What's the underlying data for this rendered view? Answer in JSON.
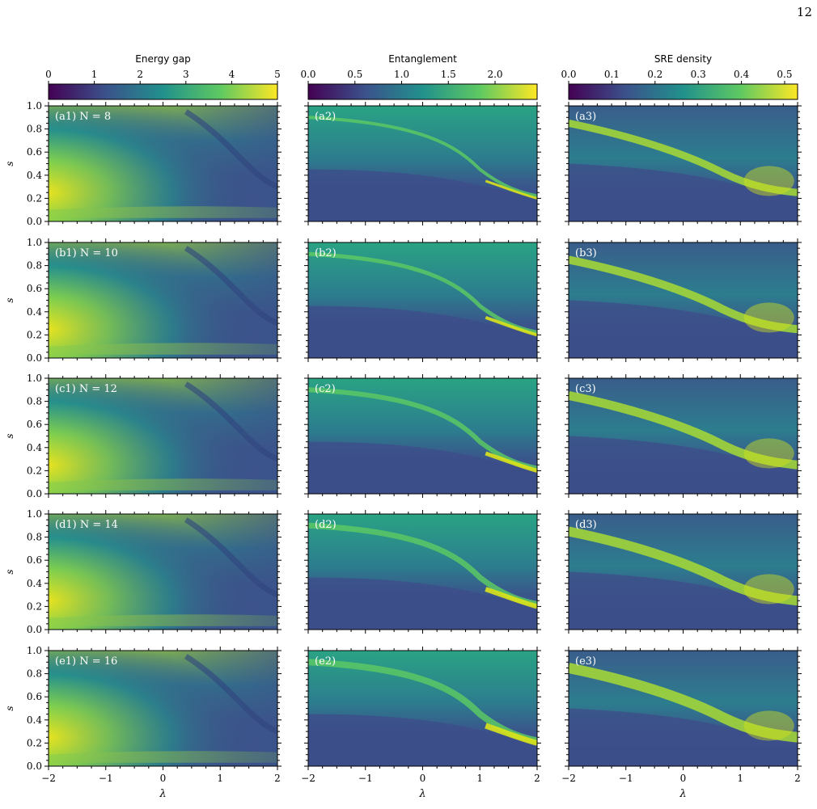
{
  "page": {
    "number": "12"
  },
  "colormap": {
    "name": "viridis",
    "stops": [
      "#440154",
      "#3b528b",
      "#21918c",
      "#5ec962",
      "#fde725"
    ]
  },
  "chart_data": {
    "type": "heatmap",
    "xlabel": "λ",
    "ylabel": "s",
    "xlim": [
      -2,
      2
    ],
    "ylim": [
      0,
      1
    ],
    "x_ticks": [
      "−2",
      "−1",
      "0",
      "1",
      "2"
    ],
    "y_ticks": [
      "0.0",
      "0.2",
      "0.4",
      "0.6",
      "0.8",
      "1.0"
    ],
    "colorbars": [
      {
        "title": "Energy gap",
        "range": [
          0,
          5
        ],
        "ticks": [
          "0",
          "1",
          "2",
          "3",
          "4",
          "5"
        ]
      },
      {
        "title": "Entanglement",
        "range": [
          0,
          2.45
        ],
        "ticks": [
          "0.0",
          "0.5",
          "1.0",
          "1.5",
          "2.0"
        ]
      },
      {
        "title": "SRE density",
        "range": [
          0,
          0.53
        ],
        "ticks": [
          "0.0",
          "0.1",
          "0.2",
          "0.3",
          "0.4",
          "0.5"
        ]
      }
    ],
    "rows": [
      {
        "N": 8,
        "labels": [
          "(a1) N = 8",
          "(a2)",
          "(a3)"
        ]
      },
      {
        "N": 10,
        "labels": [
          "(b1) N = 10",
          "(b2)",
          "(b3)"
        ]
      },
      {
        "N": 12,
        "labels": [
          "(c1) N = 12",
          "(c2)",
          "(c3)"
        ]
      },
      {
        "N": 14,
        "labels": [
          "(d1) N = 14",
          "(d2)",
          "(d3)"
        ]
      },
      {
        "N": 16,
        "labels": [
          "(e1) N = 16",
          "(e2)",
          "(e3)"
        ]
      }
    ],
    "grid": false,
    "legend": "none"
  }
}
